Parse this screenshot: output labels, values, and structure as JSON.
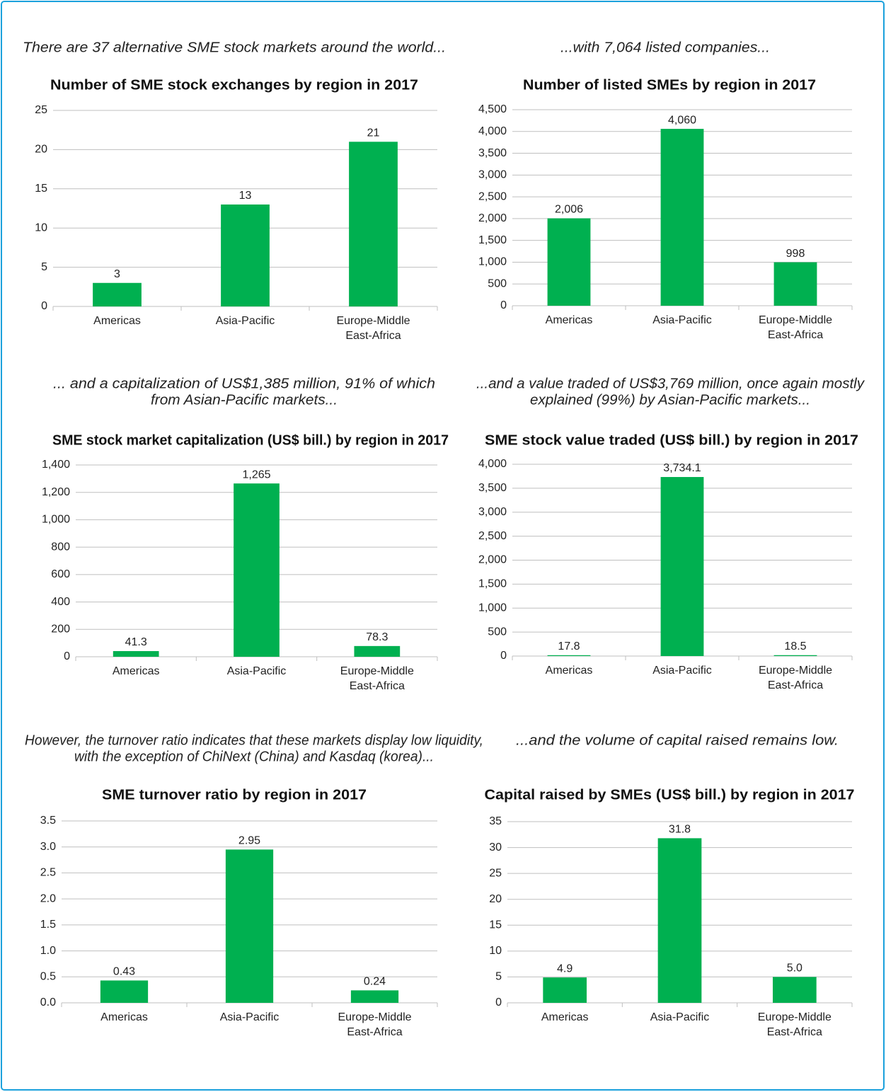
{
  "chart_data": [
    {
      "type": "bar",
      "caption": [
        "There are 37 alternative SME stock markets around the world..."
      ],
      "title": "Number of SME stock exchanges by region in 2017",
      "categories": [
        "Americas",
        "Asia-Pacific",
        "Europe-Middle\nEast-Africa"
      ],
      "values": [
        3,
        13,
        21
      ],
      "color": "#00b050",
      "ylim": [
        0,
        25
      ],
      "yticks": [
        0,
        5,
        10,
        15,
        20,
        25
      ],
      "grid": true
    },
    {
      "type": "bar",
      "caption": [
        "...with 7,064 listed companies..."
      ],
      "title": "Number of listed SMEs by region in 2017",
      "categories": [
        "Americas",
        "Asia-Pacific",
        "Europe-Middle\nEast-Africa"
      ],
      "values": [
        2006,
        4060,
        998
      ],
      "value_labels": [
        "2,006",
        "4,060",
        "998"
      ],
      "color": "#00b050",
      "ylim": [
        0,
        4500
      ],
      "yticks": [
        0,
        500,
        {
          "value": 1000,
          "label": "1,000"
        },
        {
          "value": 1500,
          "label": "1,500"
        },
        {
          "value": 2000,
          "label": "2,000"
        },
        {
          "value": 2500,
          "label": "2,500"
        },
        {
          "value": 3000,
          "label": "3,000"
        },
        {
          "value": 3500,
          "label": "3,500"
        },
        {
          "value": 4000,
          "label": "4,000"
        },
        {
          "value": 4500,
          "label": "4,500"
        }
      ],
      "grid": true
    },
    {
      "type": "bar",
      "caption": [
        "... and a capitalization of US$1,385 million, 91% of which",
        "from Asian-Pacific markets..."
      ],
      "title": "SME stock market capitalization (US$ bill.) by region in 2017",
      "categories": [
        "Americas",
        "Asia-Pacific",
        "Europe-Middle\nEast-Africa"
      ],
      "values": [
        41.3,
        1265,
        78.3
      ],
      "value_labels": [
        "41.3",
        "1,265",
        "78.3"
      ],
      "color": "#00b050",
      "ylim": [
        0,
        1400
      ],
      "yticks": [
        0,
        200,
        400,
        600,
        800,
        {
          "value": 1000,
          "label": "1,000"
        },
        {
          "value": 1200,
          "label": "1,200"
        },
        {
          "value": 1400,
          "label": "1,400"
        }
      ],
      "grid": true
    },
    {
      "type": "bar",
      "caption": [
        "...and a value traded of US$3,769 million, once again mostly",
        "explained (99%) by Asian-Pacific markets..."
      ],
      "title": "SME stock value traded (US$ bill.) by region in 2017",
      "categories": [
        "Americas",
        "Asia-Pacific",
        "Europe-Middle\nEast-Africa"
      ],
      "values": [
        17.8,
        3734.1,
        18.5
      ],
      "value_labels": [
        "17.8",
        "3,734.1",
        "18.5"
      ],
      "color": "#00b050",
      "ylim": [
        0,
        4000
      ],
      "yticks": [
        0,
        500,
        {
          "value": 1000,
          "label": "1,000"
        },
        {
          "value": 1500,
          "label": "1,500"
        },
        {
          "value": 2000,
          "label": "2,000"
        },
        {
          "value": 2500,
          "label": "2,500"
        },
        {
          "value": 3000,
          "label": "3,000"
        },
        {
          "value": 3500,
          "label": "3,500"
        },
        {
          "value": 4000,
          "label": "4,000"
        }
      ],
      "grid": true
    },
    {
      "type": "bar",
      "caption": [
        "However, the turnover ratio indicates that these markets display low liquidity,",
        "with the exception of ChiNext (China) and Kasdaq (korea)..."
      ],
      "title": "SME turnover ratio by region in 2017",
      "categories": [
        "Americas",
        "Asia-Pacific",
        "Europe-Middle\nEast-Africa"
      ],
      "values": [
        0.43,
        2.95,
        0.24
      ],
      "color": "#00b050",
      "ylim": [
        0,
        3.5
      ],
      "yticks": [
        {
          "value": 0,
          "label": "0.0"
        },
        0.5,
        {
          "value": 1,
          "label": "1.0"
        },
        1.5,
        {
          "value": 2,
          "label": "2.0"
        },
        2.5,
        {
          "value": 3,
          "label": "3.0"
        },
        3.5
      ],
      "grid": true
    },
    {
      "type": "bar",
      "caption": [
        "...and the volume of capital raised remains low."
      ],
      "title": "Capital raised by SMEs (US$ bill.) by region in 2017",
      "categories": [
        "Americas",
        "Asia-Pacific",
        "Europe-Middle\nEast-Africa"
      ],
      "values": [
        4.9,
        31.8,
        5
      ],
      "value_labels": [
        "4.9",
        "31.8",
        "5.0"
      ],
      "color": "#00b050",
      "ylim": [
        0,
        35
      ],
      "yticks": [
        0,
        5,
        10,
        15,
        20,
        25,
        30,
        35
      ],
      "grid": true
    }
  ]
}
